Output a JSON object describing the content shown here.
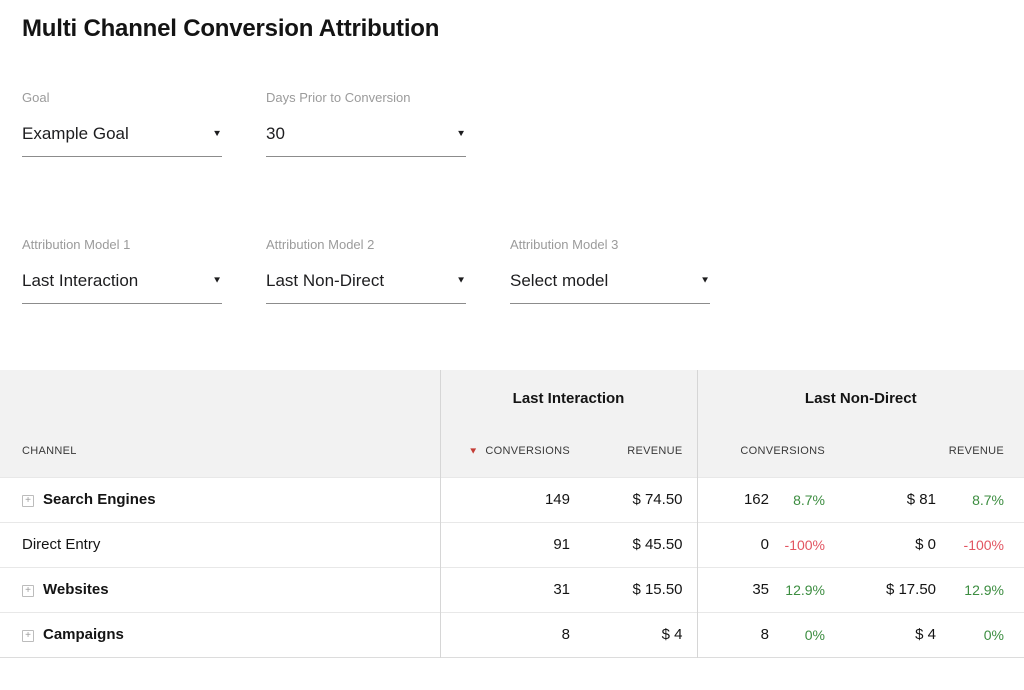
{
  "page": {
    "title": "Multi Channel Conversion Attribution"
  },
  "icons": {
    "dropdown_caret": "▼",
    "sort_desc": "▼",
    "expand_plus": "+"
  },
  "colors": {
    "positive_delta": "#3c8d40",
    "negative_delta": "#e25561",
    "sort_arrow": "#c43d36",
    "table_header_bg": "#f2f2f2"
  },
  "filters": {
    "goal": {
      "label": "Goal",
      "value": "Example Goal"
    },
    "days_prior": {
      "label": "Days Prior to Conversion",
      "value": "30"
    },
    "model1": {
      "label": "Attribution Model 1",
      "value": "Last Interaction"
    },
    "model2": {
      "label": "Attribution Model 2",
      "value": "Last Non-Direct"
    },
    "model3": {
      "label": "Attribution Model 3",
      "value": "Select model"
    }
  },
  "table": {
    "channel_header": "CHANNEL",
    "groups": [
      {
        "label": "Last Interaction",
        "cols": {
          "conversions": "CONVERSIONS",
          "revenue": "REVENUE"
        }
      },
      {
        "label": "Last Non-Direct",
        "cols": {
          "conversions": "CONVERSIONS",
          "revenue": "REVENUE"
        }
      }
    ],
    "sorted_by": "Last Interaction CONVERSIONS descending",
    "rows": [
      {
        "channel": "Search Engines",
        "expandable": "true",
        "model1": {
          "conversions": "149",
          "revenue": "$ 74.50"
        },
        "model2": {
          "conversions": "162",
          "conversions_delta": "8.7%",
          "conversions_dir": "positive",
          "revenue": "$ 81",
          "revenue_delta": "8.7%",
          "revenue_dir": "positive"
        }
      },
      {
        "channel": "Direct Entry",
        "expandable": "false",
        "model1": {
          "conversions": "91",
          "revenue": "$ 45.50"
        },
        "model2": {
          "conversions": "0",
          "conversions_delta": "-100%",
          "conversions_dir": "negative",
          "revenue": "$ 0",
          "revenue_delta": "-100%",
          "revenue_dir": "negative"
        }
      },
      {
        "channel": "Websites",
        "expandable": "true",
        "model1": {
          "conversions": "31",
          "revenue": "$ 15.50"
        },
        "model2": {
          "conversions": "35",
          "conversions_delta": "12.9%",
          "conversions_dir": "positive",
          "revenue": "$ 17.50",
          "revenue_delta": "12.9%",
          "revenue_dir": "positive"
        }
      },
      {
        "channel": "Campaigns",
        "expandable": "true",
        "model1": {
          "conversions": "8",
          "revenue": "$ 4"
        },
        "model2": {
          "conversions": "8",
          "conversions_delta": "0%",
          "conversions_dir": "positive",
          "revenue": "$ 4",
          "revenue_delta": "0%",
          "revenue_dir": "positive"
        }
      }
    ]
  }
}
